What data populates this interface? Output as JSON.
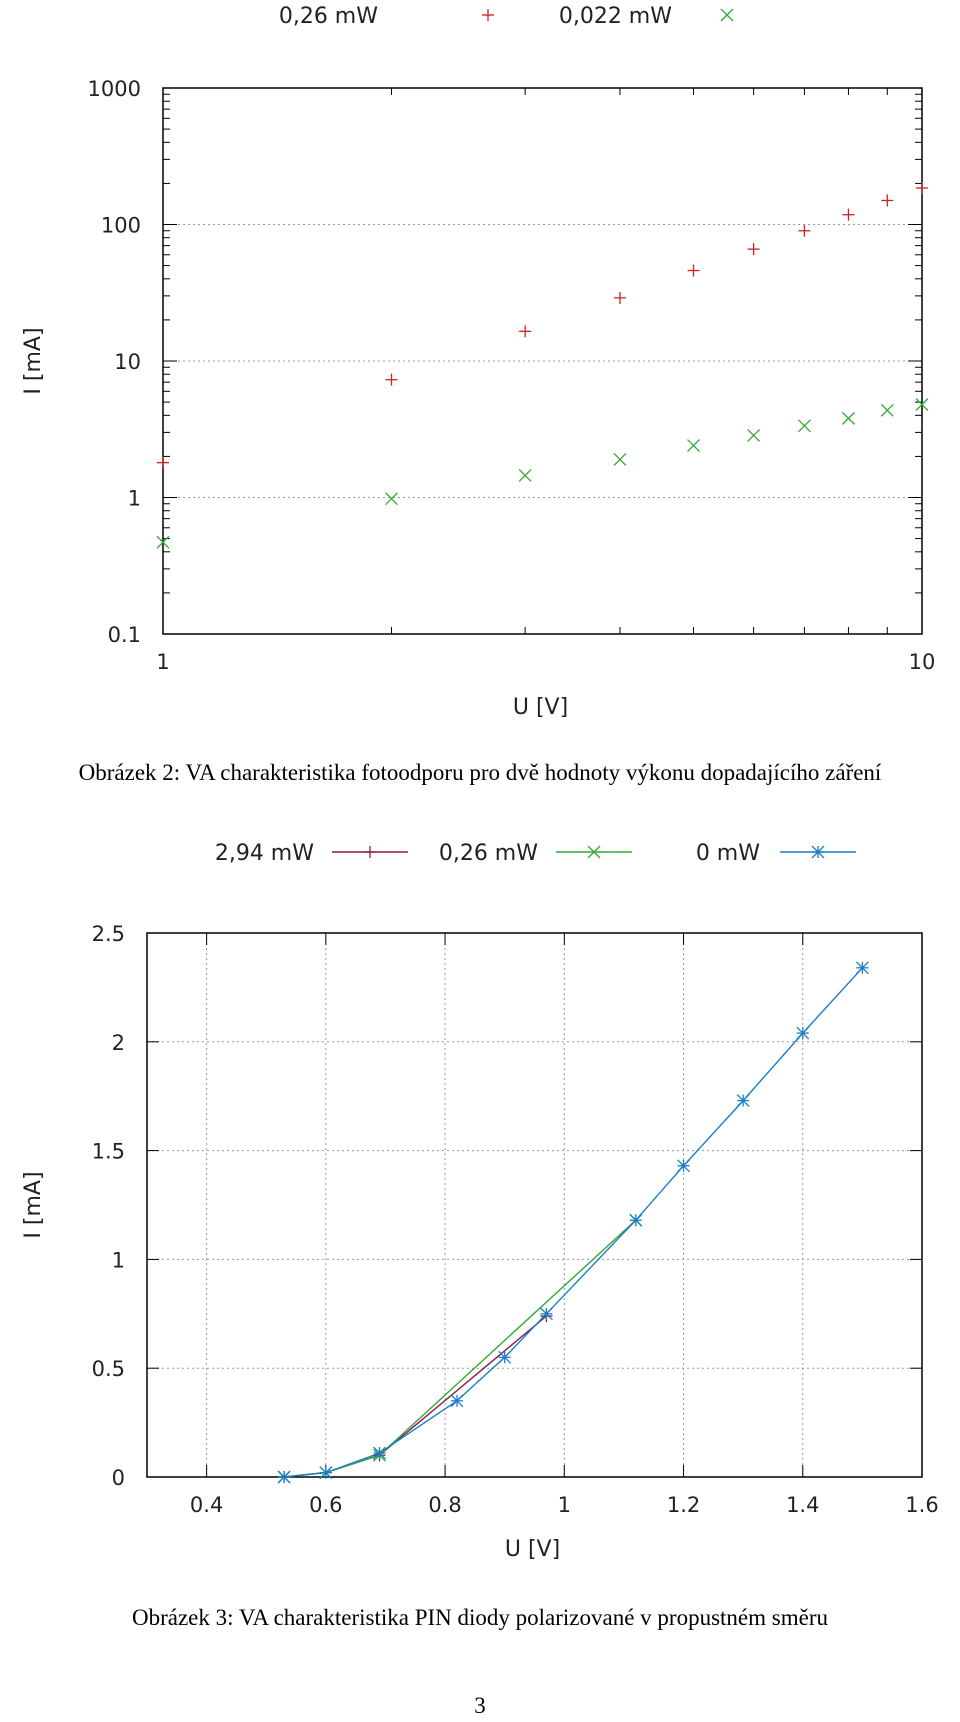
{
  "chart_data": [
    {
      "type": "scatter",
      "xlabel": "U [V]",
      "ylabel": "I [mA]",
      "xscale": "log",
      "yscale": "log",
      "xlim": [
        1,
        10
      ],
      "ylim": [
        0.1,
        1000
      ],
      "x_ticks": [
        "1",
        "10"
      ],
      "y_ticks": [
        "0.1",
        "1",
        "10",
        "100",
        "1000"
      ],
      "grid": "horizontal dotted at major y ticks",
      "legend_position": "top",
      "series": [
        {
          "name": "0,26 mW",
          "marker": "+",
          "color": "#cc2222",
          "x": [
            1,
            2,
            3,
            4,
            5,
            6,
            7,
            8,
            9,
            10
          ],
          "y": [
            1.8,
            7.3,
            16.5,
            29,
            46,
            66,
            90,
            118,
            150,
            185
          ]
        },
        {
          "name": "0,022 mW",
          "marker": "x",
          "color": "#33aa33",
          "x": [
            1,
            2,
            3,
            4,
            5,
            6,
            7,
            8,
            9,
            10
          ],
          "y": [
            0.47,
            0.98,
            1.45,
            1.9,
            2.4,
            2.85,
            3.35,
            3.8,
            4.35,
            4.8
          ]
        }
      ]
    },
    {
      "type": "line",
      "xlabel": "U [V]",
      "ylabel": "I [mA]",
      "xlim": [
        0.3,
        1.6
      ],
      "ylim": [
        0,
        2.5
      ],
      "x_ticks": [
        "0.4",
        "0.6",
        "0.8",
        "1",
        "1.2",
        "1.4",
        "1.6"
      ],
      "y_ticks": [
        "0",
        "0.5",
        "1",
        "1.5",
        "2",
        "2.5"
      ],
      "grid": "both dotted",
      "legend_position": "top",
      "series": [
        {
          "name": "2,94 mW",
          "marker": "+",
          "color": "#8b1a4a",
          "x": [
            0.53,
            0.6,
            0.69,
            0.97
          ],
          "y": [
            0.0,
            0.02,
            0.1,
            0.74
          ]
        },
        {
          "name": "0,26 mW",
          "marker": "x",
          "color": "#33aa33",
          "x": [
            0.53,
            0.6,
            0.69,
            1.12
          ],
          "y": [
            0.0,
            0.02,
            0.1,
            1.18
          ]
        },
        {
          "name": "0 mW",
          "marker": "*",
          "color": "#1a7ec8",
          "x": [
            0.53,
            0.6,
            0.69,
            0.82,
            0.9,
            0.97,
            1.12,
            1.2,
            1.3,
            1.4,
            1.5
          ],
          "y": [
            0.0,
            0.02,
            0.11,
            0.35,
            0.55,
            0.75,
            1.18,
            1.43,
            1.73,
            2.04,
            2.34
          ]
        }
      ]
    }
  ],
  "captions": {
    "figure2": "Obrázek 2: VA charakteristika fotoodporu pro dvě hodnoty výkonu dopadajícího záření",
    "figure3": "Obrázek 3: VA charakteristika PIN diody polarizované v propustném směru"
  },
  "page_number": "3"
}
